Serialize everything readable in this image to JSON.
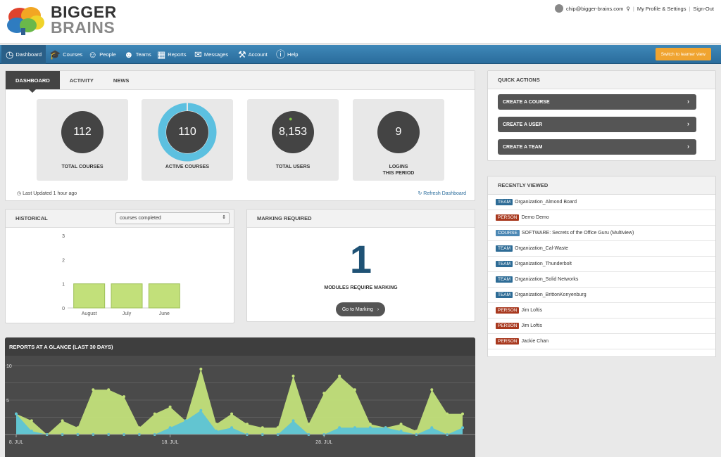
{
  "brand": {
    "line1": "BIGGER",
    "line2": "BRAINS"
  },
  "top_links": {
    "email": "chip@bigger-brains.com",
    "profile": "My Profile & Settings",
    "signout": "Sign-Out"
  },
  "nav": [
    {
      "label": "Dashboard",
      "icon": "dashboard-icon"
    },
    {
      "label": "Courses",
      "icon": "graduation-cap-icon"
    },
    {
      "label": "People",
      "icon": "person-icon"
    },
    {
      "label": "Teams",
      "icon": "team-icon"
    },
    {
      "label": "Reports",
      "icon": "presentation-icon"
    },
    {
      "label": "Messages",
      "icon": "envelope-icon"
    },
    {
      "label": "Account",
      "icon": "wrench-icon"
    },
    {
      "label": "Help",
      "icon": "info-icon"
    }
  ],
  "switch_label": "Switch to learner view",
  "tabs": [
    "DASHBOARD",
    "ACTIVITY",
    "NEWS"
  ],
  "stats": [
    {
      "value": "112",
      "label": "TOTAL COURSES"
    },
    {
      "value": "110",
      "label": "ACTIVE COURSES"
    },
    {
      "value": "8,153",
      "label": "TOTAL USERS"
    },
    {
      "value": "9",
      "label_line1": "LOGINS",
      "label_line2": "THIS PERIOD"
    }
  ],
  "last_updated": "Last Updated 1 hour ago",
  "refresh": "Refresh Dashboard",
  "historical": {
    "title": "HISTORICAL",
    "select_value": "courses completed",
    "chart_data": {
      "type": "bar",
      "categories": [
        "August",
        "July",
        "June"
      ],
      "values": [
        1,
        1,
        1
      ],
      "yticks": [
        "3",
        "2",
        "1",
        "0"
      ],
      "ylim": [
        0,
        3
      ],
      "color": "#c2e07a"
    }
  },
  "marking": {
    "title": "MARKING REQUIRED",
    "count": "1",
    "label": "MODULES REQUIRE MARKING",
    "button": "Go to Marking"
  },
  "quick_actions": {
    "title": "QUICK ACTIONS",
    "buttons": [
      "CREATE A COURSE",
      "CREATE A USER",
      "CREATE A TEAM"
    ]
  },
  "recently_viewed": {
    "title": "RECENTLY VIEWED",
    "items": [
      {
        "type": "TEAM",
        "kind": "team",
        "name": "Organization_Almond Board"
      },
      {
        "type": "PERSON",
        "kind": "person",
        "name": "Demo Demo"
      },
      {
        "type": "COURSE",
        "kind": "course",
        "name": "SOFTWARE: Secrets of the Office Guru (Multiview)"
      },
      {
        "type": "TEAM",
        "kind": "team",
        "name": "Organization_Cal-Waste"
      },
      {
        "type": "TEAM",
        "kind": "team",
        "name": "Organization_Thunderbolt"
      },
      {
        "type": "TEAM",
        "kind": "team",
        "name": "Organization_Solid Networks"
      },
      {
        "type": "TEAM",
        "kind": "team",
        "name": "Organization_BrittonKonyenburg"
      },
      {
        "type": "PERSON",
        "kind": "person",
        "name": "Jim Loftis"
      },
      {
        "type": "PERSON",
        "kind": "person",
        "name": "Jim Loftis"
      },
      {
        "type": "PERSON",
        "kind": "person",
        "name": "Jackie Chan"
      }
    ]
  },
  "reports": {
    "title": "REPORTS AT A GLANCE (LAST 30 DAYS)",
    "chart_data": {
      "type": "area",
      "x_tick_labels": [
        "8. JUL",
        "18. JUL",
        "28. JUL"
      ],
      "x_tick_index": [
        0,
        10,
        20
      ],
      "yticks": [
        "10",
        "5"
      ],
      "ylim": [
        0,
        10
      ],
      "series": [
        {
          "color": "#c2e07a",
          "values": [
            3,
            2,
            0,
            2,
            1,
            6.5,
            6.5,
            5.5,
            1,
            3,
            4,
            2,
            9.5,
            1.5,
            3,
            1.5,
            1,
            1,
            8.5,
            1.5,
            6,
            8.5,
            6.5,
            1.5,
            1,
            1.5,
            0.5,
            6.5,
            3,
            3
          ]
        },
        {
          "color": "#5dc4d6",
          "values": [
            3,
            0.5,
            0,
            0,
            0,
            0,
            0,
            0,
            0,
            0,
            1,
            2,
            3.5,
            0.5,
            1,
            0,
            0,
            0,
            2,
            0,
            0,
            1,
            1,
            1,
            1,
            0.5,
            0,
            1,
            0,
            1
          ]
        }
      ]
    }
  }
}
